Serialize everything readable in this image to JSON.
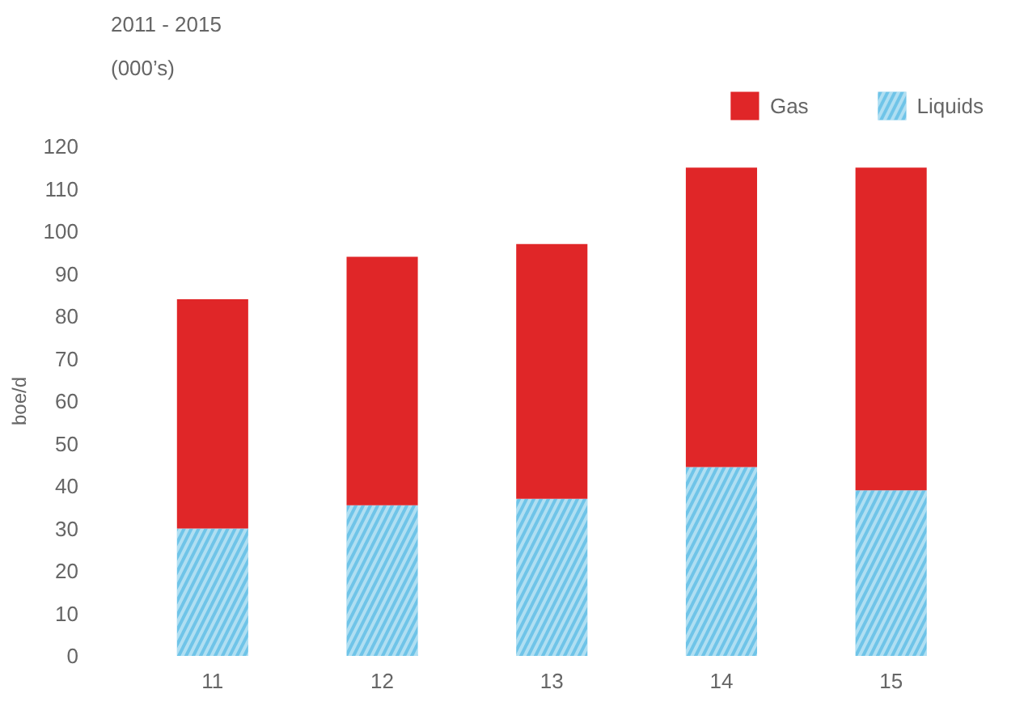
{
  "chart_data": {
    "type": "bar",
    "title": "2011 - 2015",
    "subtitle": "(000’s)",
    "ylabel": "boe/d",
    "categories": [
      "11",
      "12",
      "13",
      "14",
      "15"
    ],
    "stacked": true,
    "series": [
      {
        "name": "Liquids",
        "color": "#6fc4e8",
        "values": [
          30,
          35.5,
          37,
          44.5,
          39
        ]
      },
      {
        "name": "Gas",
        "color": "#e02628",
        "values": [
          54,
          58.5,
          60,
          70.5,
          76
        ]
      }
    ],
    "ylim": [
      0,
      120
    ],
    "yticks": [
      0,
      10,
      20,
      30,
      40,
      50,
      60,
      70,
      80,
      90,
      100,
      110,
      120
    ],
    "grid": false,
    "legend": "top right"
  }
}
